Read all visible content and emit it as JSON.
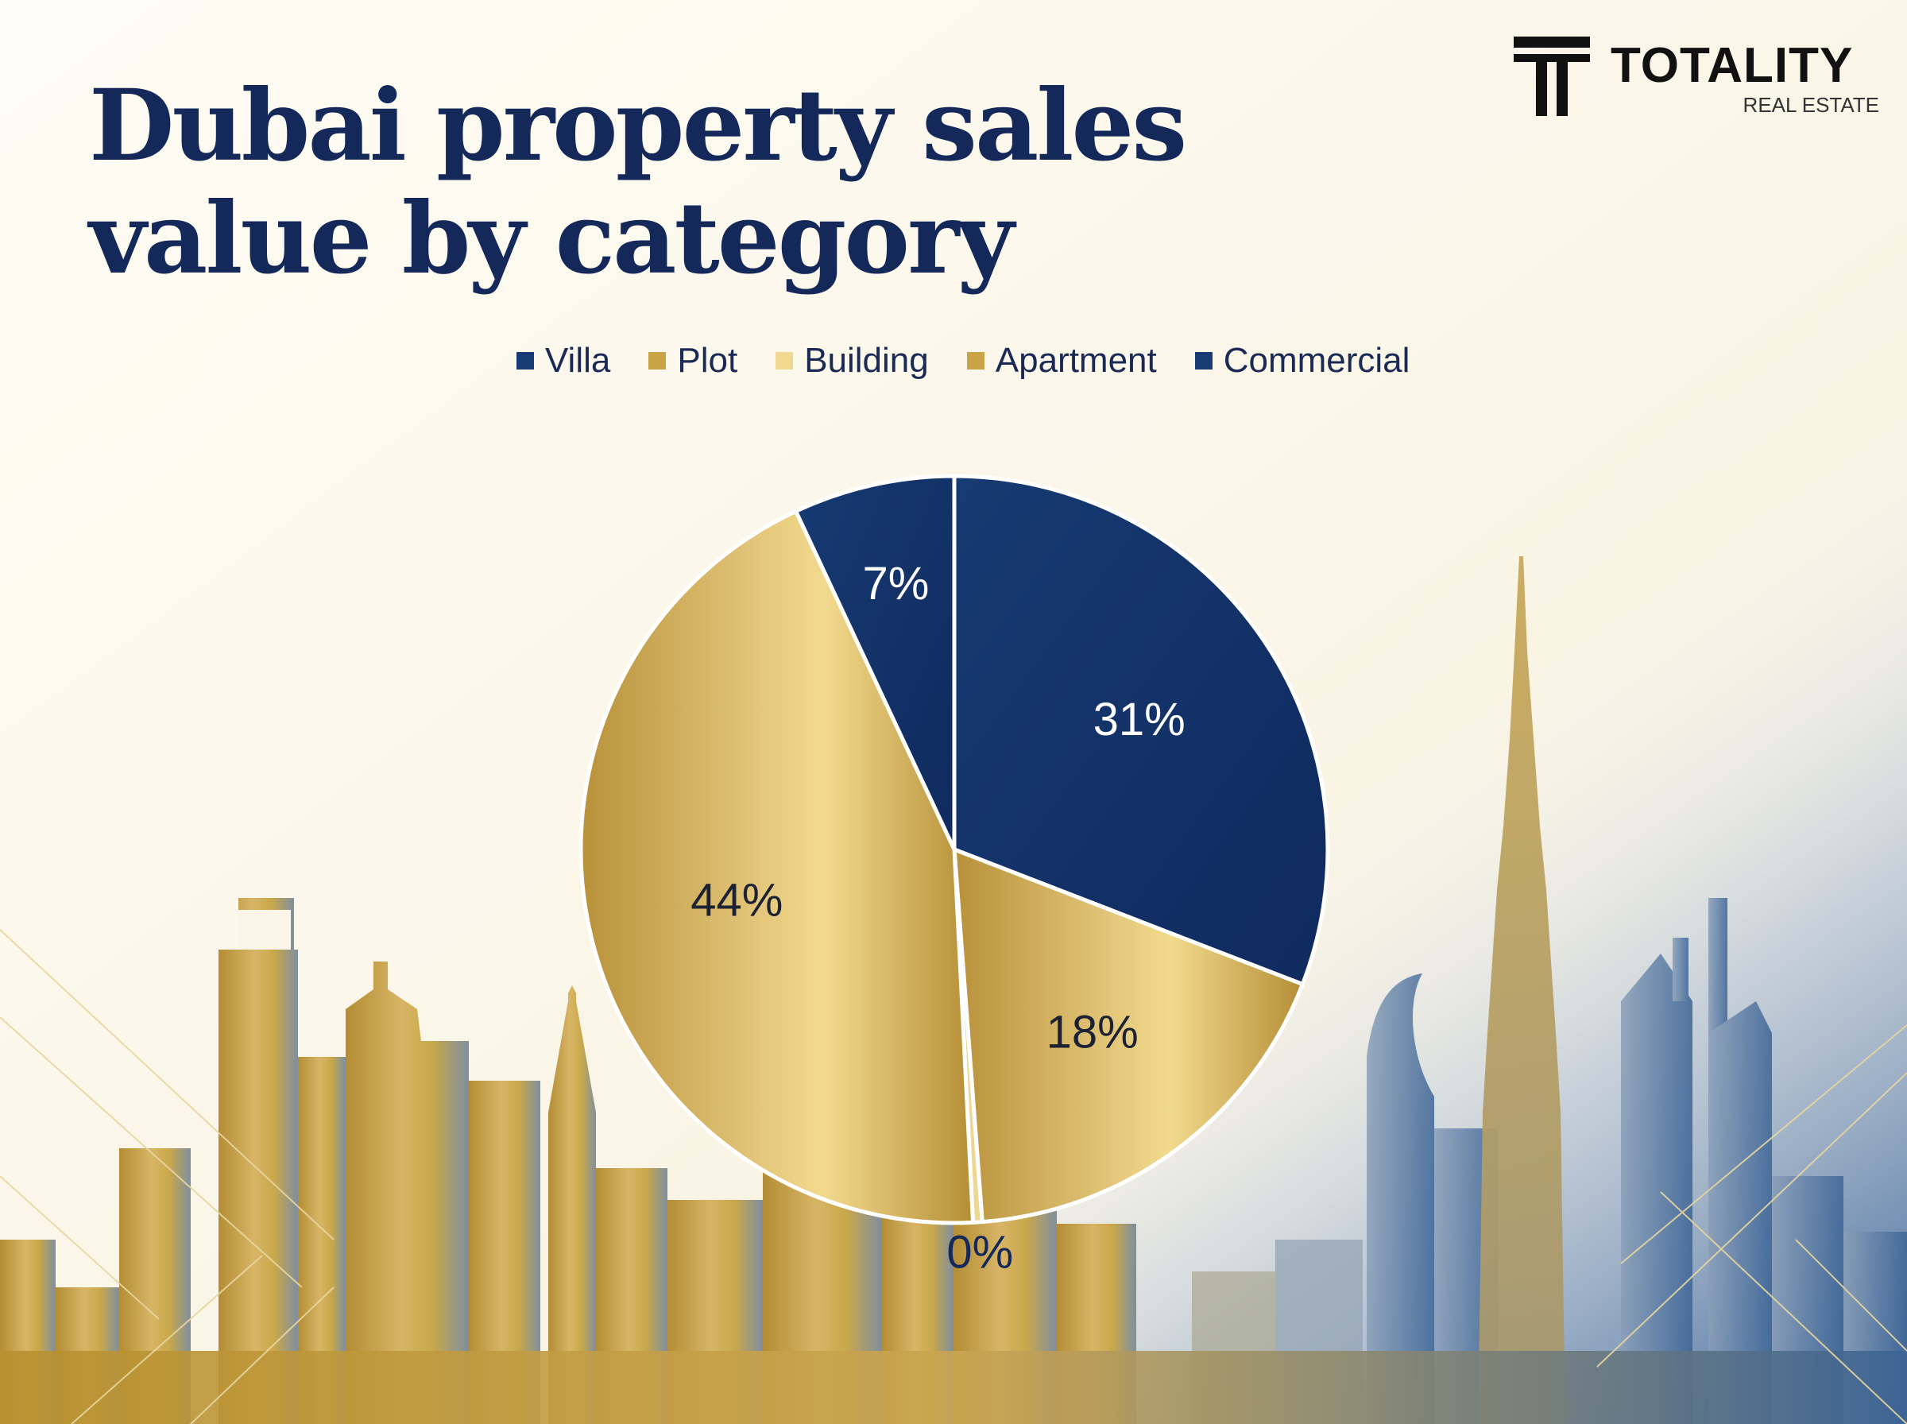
{
  "header": {
    "title_line1": "Dubai property sales",
    "title_line2": "value by category"
  },
  "brand": {
    "name": "TOTALITY",
    "subtitle": "REAL ESTATE"
  },
  "chart_data": {
    "type": "pie",
    "title": "Dubai property sales value by category",
    "categories": [
      "Villa",
      "Plot",
      "Building",
      "Apartment",
      "Commercial"
    ],
    "values": [
      31,
      18,
      0.4,
      44,
      7
    ],
    "labels": [
      "31%",
      "18%",
      "0%",
      "44%",
      "7%"
    ],
    "colors": [
      "#14306b",
      "#c9a84a",
      "#ecd794",
      "#c9a84a",
      "#14306b"
    ],
    "legend_position": "top",
    "legend_marker_colors": [
      "#163a72",
      "#c8a447",
      "#f0d98e",
      "#c8a447",
      "#163a72"
    ],
    "start_angle_deg": 0,
    "direction": "clockwise"
  },
  "colors": {
    "title": "#14295a",
    "navy": "#14306b",
    "gold": "#c9a84a"
  }
}
